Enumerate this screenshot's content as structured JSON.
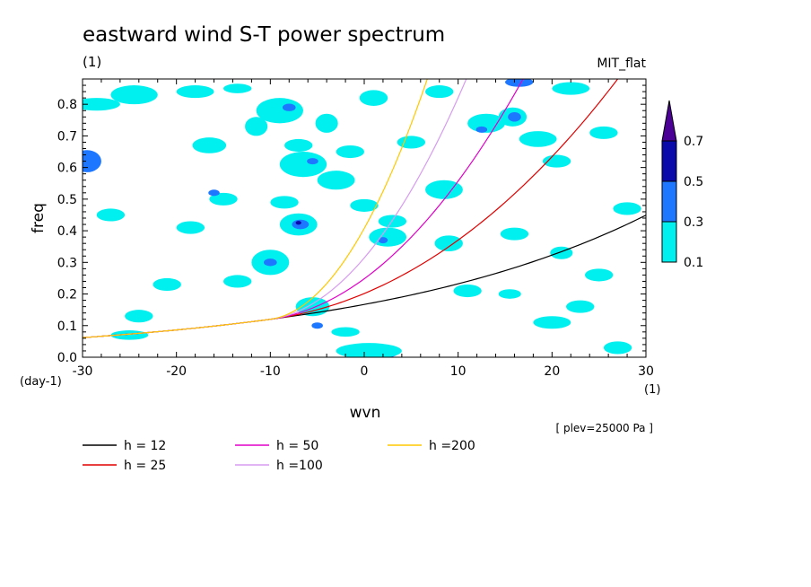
{
  "chart_data": {
    "type": "heatmap",
    "title": "eastward wind S-T power spectrum",
    "subtitle_left": "(1)",
    "subtitle_right": "MIT_flat",
    "xlabel": "wvn",
    "ylabel": "freq",
    "x_unit": "(1)",
    "y_unit": "(day-1)",
    "xlim": [
      -30,
      30
    ],
    "ylim": [
      0,
      0.88
    ],
    "xticks": [
      -30,
      -20,
      -10,
      0,
      10,
      20,
      30
    ],
    "yticks": [
      0.0,
      0.1,
      0.2,
      0.3,
      0.4,
      0.5,
      0.6,
      0.7,
      0.8
    ],
    "ytick_labels": [
      "0.0",
      "0.1",
      "0.2",
      "0.3",
      "0.4",
      "0.5",
      "0.6",
      "0.7",
      "0.8"
    ],
    "annotation": "[ plev=25000 Pa ]",
    "colorbar": {
      "levels": [
        "0.1",
        "0.3",
        "0.5",
        "0.7"
      ],
      "colors": [
        "#00f0f0",
        "#1e78ff",
        "#0a0aaa",
        "#4b0096"
      ]
    },
    "series": [
      {
        "name": "h = 12",
        "h": 12,
        "color": "#000000"
      },
      {
        "name": "h = 25",
        "h": 25,
        "color": "#e00000"
      },
      {
        "name": "h = 50",
        "h": 50,
        "color": "#e000c8"
      },
      {
        "name": "h =100",
        "h": 100,
        "color": "#d79bf0"
      },
      {
        "name": "h =200",
        "h": 200,
        "color": "#ffc800"
      }
    ],
    "blobs": [
      {
        "x": -29.5,
        "y": 0.62,
        "rx": 1.5,
        "ry": 0.035,
        "level": 2
      },
      {
        "x": -28.5,
        "y": 0.8,
        "rx": 2.5,
        "ry": 0.02,
        "level": 1
      },
      {
        "x": -24.5,
        "y": 0.83,
        "rx": 2.5,
        "ry": 0.03,
        "level": 1
      },
      {
        "x": -18.0,
        "y": 0.84,
        "rx": 2.0,
        "ry": 0.02,
        "level": 1
      },
      {
        "x": -13.5,
        "y": 0.85,
        "rx": 1.5,
        "ry": 0.015,
        "level": 1
      },
      {
        "x": -9.0,
        "y": 0.78,
        "rx": 2.5,
        "ry": 0.04,
        "level": 1
      },
      {
        "x": -8.0,
        "y": 0.79,
        "rx": 0.7,
        "ry": 0.012,
        "level": 2
      },
      {
        "x": -11.5,
        "y": 0.73,
        "rx": 1.2,
        "ry": 0.03,
        "level": 1
      },
      {
        "x": -4.0,
        "y": 0.74,
        "rx": 1.2,
        "ry": 0.03,
        "level": 1
      },
      {
        "x": 1.0,
        "y": 0.82,
        "rx": 1.5,
        "ry": 0.025,
        "level": 1
      },
      {
        "x": -16.5,
        "y": 0.67,
        "rx": 1.8,
        "ry": 0.025,
        "level": 1
      },
      {
        "x": -7.0,
        "y": 0.67,
        "rx": 1.5,
        "ry": 0.02,
        "level": 1
      },
      {
        "x": -6.5,
        "y": 0.61,
        "rx": 2.5,
        "ry": 0.04,
        "level": 1
      },
      {
        "x": -5.5,
        "y": 0.62,
        "rx": 0.6,
        "ry": 0.01,
        "level": 2
      },
      {
        "x": -3.0,
        "y": 0.56,
        "rx": 2.0,
        "ry": 0.03,
        "level": 1
      },
      {
        "x": -15.0,
        "y": 0.5,
        "rx": 1.5,
        "ry": 0.02,
        "level": 1
      },
      {
        "x": -16.0,
        "y": 0.52,
        "rx": 0.6,
        "ry": 0.01,
        "level": 2
      },
      {
        "x": -8.5,
        "y": 0.49,
        "rx": 1.5,
        "ry": 0.02,
        "level": 1
      },
      {
        "x": -7.0,
        "y": 0.42,
        "rx": 2.0,
        "ry": 0.035,
        "level": 1
      },
      {
        "x": -6.8,
        "y": 0.42,
        "rx": 0.9,
        "ry": 0.015,
        "level": 2
      },
      {
        "x": -7.0,
        "y": 0.425,
        "rx": 0.3,
        "ry": 0.006,
        "level": 3
      },
      {
        "x": -10.0,
        "y": 0.3,
        "rx": 2.0,
        "ry": 0.04,
        "level": 1
      },
      {
        "x": -10.0,
        "y": 0.3,
        "rx": 0.7,
        "ry": 0.012,
        "level": 2
      },
      {
        "x": -21.0,
        "y": 0.23,
        "rx": 1.5,
        "ry": 0.02,
        "level": 1
      },
      {
        "x": -13.5,
        "y": 0.24,
        "rx": 1.5,
        "ry": 0.02,
        "level": 1
      },
      {
        "x": -5.5,
        "y": 0.16,
        "rx": 1.2,
        "ry": 0.02,
        "level": 2
      },
      {
        "x": -5.5,
        "y": 0.16,
        "rx": 1.8,
        "ry": 0.03,
        "level": 1
      },
      {
        "x": -5.0,
        "y": 0.1,
        "rx": 0.6,
        "ry": 0.01,
        "level": 2
      },
      {
        "x": -24.0,
        "y": 0.13,
        "rx": 1.5,
        "ry": 0.02,
        "level": 1
      },
      {
        "x": -25.0,
        "y": 0.07,
        "rx": 2.0,
        "ry": 0.015,
        "level": 1
      },
      {
        "x": 2.5,
        "y": 0.38,
        "rx": 2.0,
        "ry": 0.03,
        "level": 1
      },
      {
        "x": 2.0,
        "y": 0.37,
        "rx": 0.5,
        "ry": 0.01,
        "level": 2
      },
      {
        "x": 3.0,
        "y": 0.43,
        "rx": 1.5,
        "ry": 0.02,
        "level": 1
      },
      {
        "x": 1.0,
        "y": 0.01,
        "rx": 2.5,
        "ry": 0.015,
        "level": 2
      },
      {
        "x": 0.5,
        "y": 0.02,
        "rx": 3.5,
        "ry": 0.025,
        "level": 1
      },
      {
        "x": 8.5,
        "y": 0.53,
        "rx": 2.0,
        "ry": 0.03,
        "level": 1
      },
      {
        "x": 9.0,
        "y": 0.36,
        "rx": 1.5,
        "ry": 0.025,
        "level": 1
      },
      {
        "x": 13.0,
        "y": 0.74,
        "rx": 2.0,
        "ry": 0.03,
        "level": 1
      },
      {
        "x": 12.5,
        "y": 0.72,
        "rx": 0.6,
        "ry": 0.01,
        "level": 2
      },
      {
        "x": 15.8,
        "y": 0.76,
        "rx": 1.5,
        "ry": 0.03,
        "level": 1
      },
      {
        "x": 16.0,
        "y": 0.76,
        "rx": 0.7,
        "ry": 0.015,
        "level": 2
      },
      {
        "x": 18.5,
        "y": 0.69,
        "rx": 2.0,
        "ry": 0.025,
        "level": 1
      },
      {
        "x": 16.5,
        "y": 0.87,
        "rx": 1.5,
        "ry": 0.015,
        "level": 2
      },
      {
        "x": 22.0,
        "y": 0.85,
        "rx": 2.0,
        "ry": 0.02,
        "level": 1
      },
      {
        "x": 20.5,
        "y": 0.62,
        "rx": 1.5,
        "ry": 0.02,
        "level": 1
      },
      {
        "x": 28.0,
        "y": 0.47,
        "rx": 1.5,
        "ry": 0.02,
        "level": 1
      },
      {
        "x": 16.0,
        "y": 0.39,
        "rx": 1.5,
        "ry": 0.02,
        "level": 1
      },
      {
        "x": 21.0,
        "y": 0.33,
        "rx": 1.2,
        "ry": 0.02,
        "level": 1
      },
      {
        "x": 15.5,
        "y": 0.2,
        "rx": 1.2,
        "ry": 0.015,
        "level": 1
      },
      {
        "x": 23.0,
        "y": 0.16,
        "rx": 1.5,
        "ry": 0.02,
        "level": 1
      },
      {
        "x": 20.0,
        "y": 0.11,
        "rx": 2.0,
        "ry": 0.02,
        "level": 1
      },
      {
        "x": 27.0,
        "y": 0.03,
        "rx": 1.5,
        "ry": 0.02,
        "level": 1
      },
      {
        "x": 5.0,
        "y": 0.68,
        "rx": 1.5,
        "ry": 0.02,
        "level": 1
      },
      {
        "x": 8.0,
        "y": 0.84,
        "rx": 1.5,
        "ry": 0.02,
        "level": 1
      },
      {
        "x": 25.5,
        "y": 0.71,
        "rx": 1.5,
        "ry": 0.02,
        "level": 1
      },
      {
        "x": 11.0,
        "y": 0.21,
        "rx": 1.5,
        "ry": 0.02,
        "level": 1
      },
      {
        "x": -18.5,
        "y": 0.41,
        "rx": 1.5,
        "ry": 0.02,
        "level": 1
      },
      {
        "x": -27.0,
        "y": 0.45,
        "rx": 1.5,
        "ry": 0.02,
        "level": 1
      },
      {
        "x": -1.5,
        "y": 0.65,
        "rx": 1.5,
        "ry": 0.02,
        "level": 1
      },
      {
        "x": 0.0,
        "y": 0.48,
        "rx": 1.5,
        "ry": 0.02,
        "level": 1
      },
      {
        "x": 25.0,
        "y": 0.26,
        "rx": 1.5,
        "ry": 0.02,
        "level": 1
      },
      {
        "x": -2.0,
        "y": 0.08,
        "rx": 1.5,
        "ry": 0.015,
        "level": 1
      }
    ]
  }
}
